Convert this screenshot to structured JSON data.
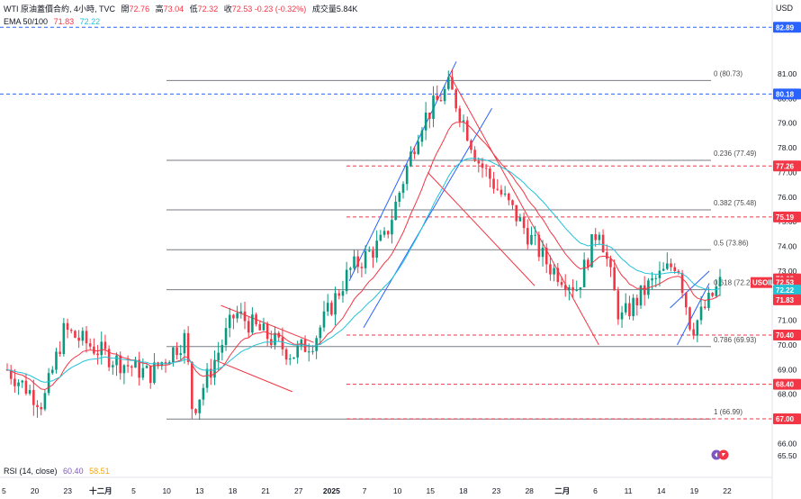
{
  "header": {
    "symbol": "WTI 原油蓋價合約, 4小時, TVC",
    "open_label": "開",
    "open": "72.76",
    "high_label": "高",
    "high": "73.04",
    "low_label": "低",
    "low": "72.32",
    "close_label": "收",
    "close": "72.53",
    "change": "-0.23 (-0.32%)",
    "volume": "成交量5.84K"
  },
  "ema": {
    "label": "EMA 50/100",
    "ema50": "71.83",
    "ema100": "72.22"
  },
  "rsi": {
    "label": "RSI (14, close)",
    "value1": "60.40",
    "value2": "58.51"
  },
  "currency": "USD",
  "colors": {
    "up": "#089981",
    "down": "#f23645",
    "ema50": "#f23645",
    "ema100": "#22c3d6",
    "fib": "#787b86",
    "blue": "#2962ff",
    "red_line": "#f23645"
  },
  "chart_data": {
    "type": "candlestick",
    "y_ticks": [
      "81.00",
      "80.00",
      "79.00",
      "78.00",
      "77.00",
      "76.00",
      "75.00",
      "74.00",
      "73.00",
      "72.00",
      "71.00",
      "70.00",
      "69.00",
      "68.00",
      "67.00",
      "66.00",
      "65.50"
    ],
    "ylim": [
      65.5,
      82.9
    ],
    "x_ticks": [
      "5",
      "20",
      "23",
      "十二月",
      "5",
      "10",
      "13",
      "18",
      "21",
      "27",
      "2025",
      "7",
      "10",
      "15",
      "18",
      "23",
      "28",
      "二月",
      "6",
      "11",
      "14",
      "19",
      "22"
    ],
    "fib_levels": [
      {
        "ratio": "0",
        "value": 80.73,
        "label": "0 (80.73)"
      },
      {
        "ratio": "0.236",
        "value": 77.49,
        "label": "0.236 (77.49)"
      },
      {
        "ratio": "0.382",
        "value": 75.48,
        "label": "0.382 (75.48)"
      },
      {
        "ratio": "0.5",
        "value": 73.86,
        "label": "0.5 (73.86)"
      },
      {
        "ratio": "0.618",
        "value": 72.24,
        "label": "0.618 (72.24)"
      },
      {
        "ratio": "0.786",
        "value": 69.93,
        "label": "0.786 (69.93)"
      },
      {
        "ratio": "1",
        "value": 66.99,
        "label": "1 (66.99)"
      }
    ],
    "price_tags": [
      {
        "value": "82.89",
        "style": "blue-dashed"
      },
      {
        "value": "80.18",
        "style": "blue-dashed"
      },
      {
        "value": "77.26",
        "style": "red-dashed"
      },
      {
        "value": "75.19",
        "style": "red-dashed"
      },
      {
        "value": "72.68",
        "style": "red"
      },
      {
        "value": "72.53",
        "style": "price"
      },
      {
        "value": "72.22",
        "style": "ema100"
      },
      {
        "value": "71.83",
        "style": "ema50"
      },
      {
        "value": "70.40",
        "style": "red-dashed"
      },
      {
        "value": "68.40",
        "style": "red-dashed"
      },
      {
        "value": "67.00",
        "style": "red-dashed"
      }
    ],
    "price_label": "USOIL",
    "key_points": [
      {
        "t": 0,
        "v": 69.0
      },
      {
        "t": 0.05,
        "v": 67.6
      },
      {
        "t": 0.08,
        "v": 70.6
      },
      {
        "t": 0.15,
        "v": 69.4
      },
      {
        "t": 0.2,
        "v": 68.8
      },
      {
        "t": 0.25,
        "v": 70.3
      },
      {
        "t": 0.26,
        "v": 67.3
      },
      {
        "t": 0.32,
        "v": 71.3
      },
      {
        "t": 0.4,
        "v": 69.6
      },
      {
        "t": 0.43,
        "v": 70.2
      },
      {
        "t": 0.48,
        "v": 73.0
      },
      {
        "t": 0.53,
        "v": 74.3
      },
      {
        "t": 0.58,
        "v": 79.0
      },
      {
        "t": 0.62,
        "v": 80.5
      },
      {
        "t": 0.64,
        "v": 79.1
      },
      {
        "t": 0.66,
        "v": 77.5
      },
      {
        "t": 0.71,
        "v": 75.4
      },
      {
        "t": 0.76,
        "v": 73.2
      },
      {
        "t": 0.8,
        "v": 72.3
      },
      {
        "t": 0.83,
        "v": 74.9
      },
      {
        "t": 0.86,
        "v": 71.0
      },
      {
        "t": 0.9,
        "v": 72.4
      },
      {
        "t": 0.94,
        "v": 73.4
      },
      {
        "t": 0.96,
        "v": 70.6
      },
      {
        "t": 1.0,
        "v": 72.5
      }
    ]
  }
}
